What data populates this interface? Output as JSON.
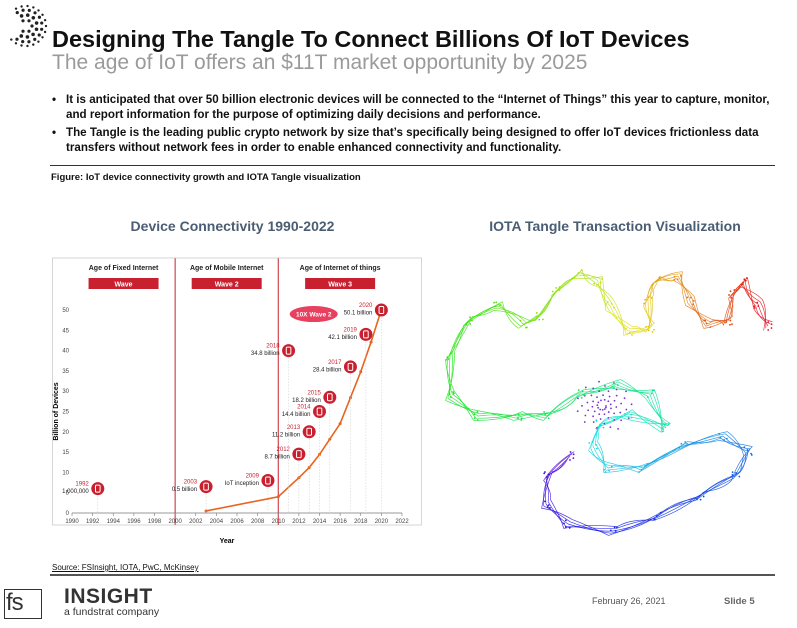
{
  "header": {
    "title": "Designing The Tangle To Connect Billions Of IoT Devices",
    "subtitle": "The age of IoT offers an $11T market opportunity by 2025"
  },
  "bullets": [
    "It is anticipated that over 50 billion electronic devices will be connected to the “Internet of Things” this year to capture, monitor, and report information for the purpose of optimizing daily decisions and performance.",
    "The Tangle is the leading public crypto network by size that’s specifically being designed to offer IoT devices frictionless data transfers without network fees in order to enable enhanced connectivity and functionality."
  ],
  "figure_caption": "Figure: IoT device connectivity growth and IOTA Tangle visualization",
  "left_panel_title": "Device Connectivity 1990-2022",
  "right_panel_title": "IOTA Tangle Transaction Visualization",
  "chart_data": {
    "type": "line",
    "title": "Device Connectivity 1990-2022",
    "xlabel": "Year",
    "ylabel": "Billion of Devices",
    "xlim": [
      1990,
      2022
    ],
    "ylim": [
      0,
      50
    ],
    "x_ticks": [
      "1990",
      "1992",
      "1994",
      "1996",
      "1998",
      "2000",
      "2002",
      "2004",
      "2006",
      "2008",
      "2010",
      "2012",
      "2014",
      "2016",
      "2018",
      "2020",
      "2022"
    ],
    "y_ticks": [
      "0",
      "5",
      "10",
      "15",
      "20",
      "25",
      "30",
      "35",
      "40",
      "45",
      "50"
    ],
    "series": [
      {
        "x": [
          2003,
          2010,
          2012,
          2013,
          2014,
          2015,
          2016,
          2017,
          2018,
          2019,
          2020
        ],
        "y": [
          0.5,
          4.0,
          8.7,
          11.2,
          14.4,
          18.2,
          22.0,
          28.4,
          34.8,
          42.1,
          50.1
        ]
      }
    ],
    "eras": [
      {
        "label": "Age of Fixed Internet",
        "badge": "Wave",
        "from": 1990,
        "to": 2000
      },
      {
        "label": "Age of Mobile Internet",
        "badge": "Wave 2",
        "from": 2000,
        "to": 2010
      },
      {
        "label": "Age of Internet of things",
        "badge": "Wave 3",
        "from": 2010,
        "to": 2022
      }
    ],
    "highlight_badge": "10X Wave 2",
    "annotations": [
      {
        "year": "1992",
        "value": "1,000,000",
        "x": 1992.5,
        "y": 6
      },
      {
        "year": "2003",
        "value": "0.5 billion",
        "x": 2003,
        "y": 6.5
      },
      {
        "year": "2009",
        "value": "IoT inception",
        "x": 2009,
        "y": 8
      },
      {
        "year": "2012",
        "value": "8.7 billion",
        "x": 2012,
        "y": 14.5
      },
      {
        "year": "2013",
        "value": "11.2 billion",
        "x": 2013,
        "y": 20
      },
      {
        "year": "2014",
        "value": "14.4 billion",
        "x": 2014,
        "y": 25
      },
      {
        "year": "2015",
        "value": "18.2 billion",
        "x": 2015,
        "y": 28.5
      },
      {
        "year": "2017",
        "value": "28.4 billion",
        "x": 2017,
        "y": 36
      },
      {
        "year": "2018",
        "value": "34.8 billion",
        "x": 2011,
        "y": 40
      },
      {
        "year": "2019",
        "value": "42.1 billion",
        "x": 2018.5,
        "y": 44
      },
      {
        "year": "2020",
        "value": "50.1 billion",
        "x": 2020,
        "y": 50
      }
    ],
    "colors": {
      "line": "#e8641e",
      "accent": "#c8202f",
      "divider": "#c8202f"
    }
  },
  "source": "Source: FSInsight, IOTA, PwC, McKinsey",
  "footer": {
    "brand_mark": "fs",
    "brand_name": "INSIGHT",
    "brand_tagline": "a fundstrat company",
    "date": "February 26, 2021",
    "slide": "Slide  5"
  }
}
